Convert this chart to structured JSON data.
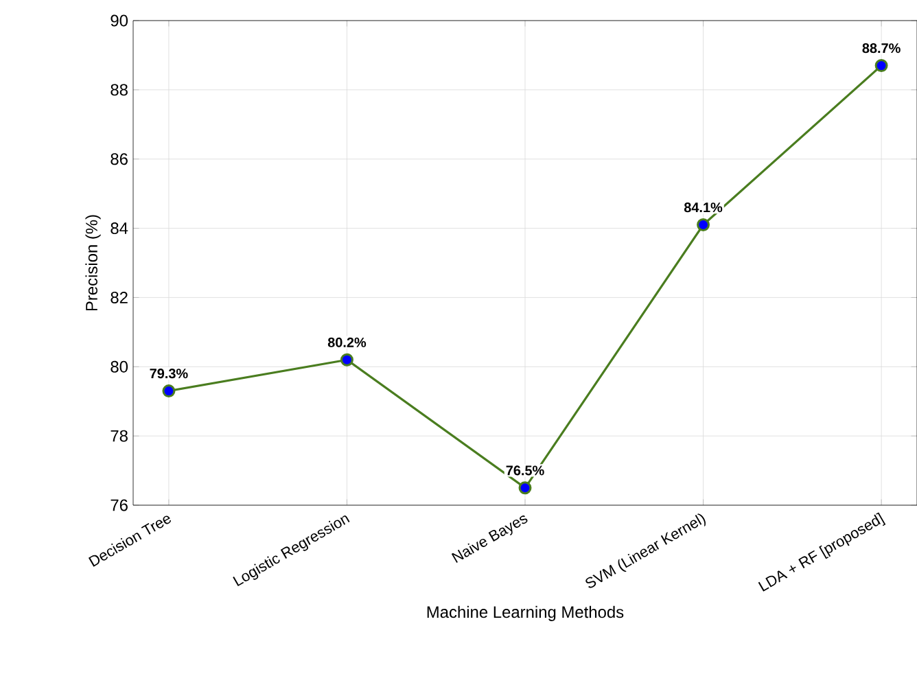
{
  "chart_data": {
    "type": "line",
    "xlabel": "Machine Learning Methods",
    "ylabel": "Precision (%)",
    "categories": [
      "Decision Tree",
      "Logistic Regression",
      "Naive Bayes",
      "SVM (Linear Kernel)",
      "LDA + RF [proposed]"
    ],
    "series": [
      {
        "color": "#4a7d1f",
        "colors": [
          "#0000ff",
          "#0000ff",
          "#0000ff",
          "#0000ff",
          "#0000ff"
        ],
        "values": [
          79.3,
          80.2,
          76.5,
          84.1,
          88.7
        ],
        "value_labels": [
          "79.3%",
          "80.2%",
          "76.5%",
          "84.1%",
          "88.7%"
        ]
      }
    ],
    "ylim": [
      76,
      90
    ],
    "yticks": [
      76,
      78,
      80,
      82,
      84,
      86,
      88,
      90
    ],
    "grid": true,
    "marker": "circle",
    "line_style": "solid"
  }
}
